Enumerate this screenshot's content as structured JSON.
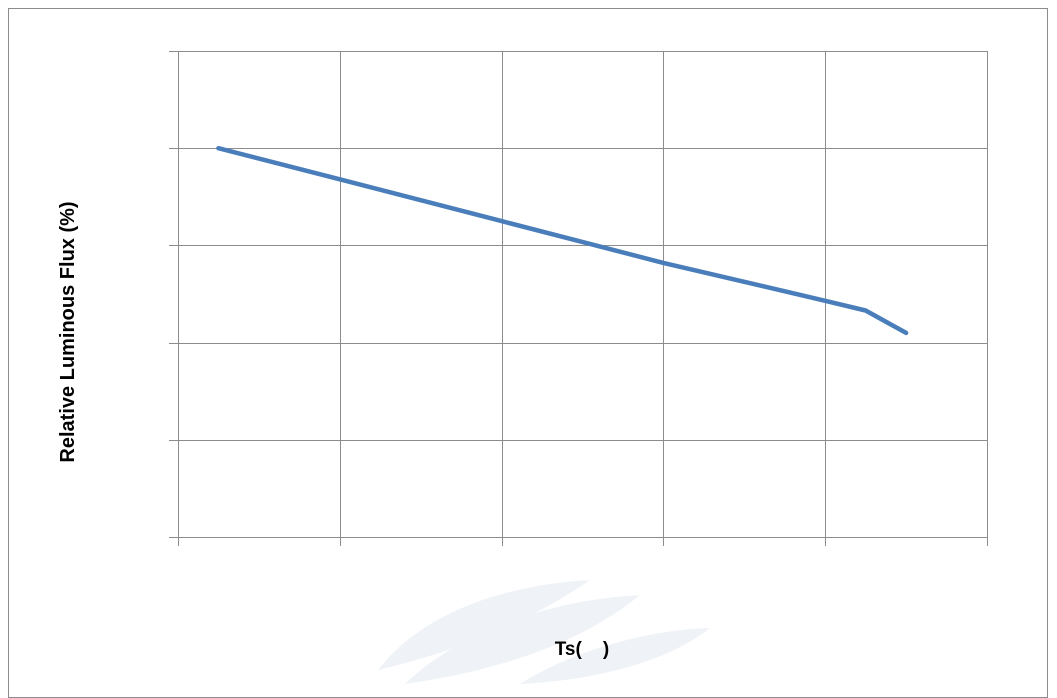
{
  "chart_data": {
    "type": "line",
    "title": "",
    "xlabel": "Ts(    )",
    "ylabel": "Relative Luminous Flux (%)",
    "grid": true,
    "legend": "none",
    "xlim": [
      0,
      5
    ],
    "ylim": [
      0,
      5
    ],
    "x_tick_labels": [],
    "y_tick_labels": [],
    "series": [
      {
        "color": "#4a7ebb",
        "x": [
          0.25,
          1.0,
          2.0,
          3.0,
          4.0,
          4.25,
          4.5
        ],
        "y": [
          4.0,
          3.68,
          3.25,
          2.82,
          2.43,
          2.33,
          2.1
        ]
      }
    ]
  },
  "colors": {
    "series_line": "#4a7ebb",
    "grid": "#8c8c8c",
    "watermark": "#e3e9f1"
  }
}
